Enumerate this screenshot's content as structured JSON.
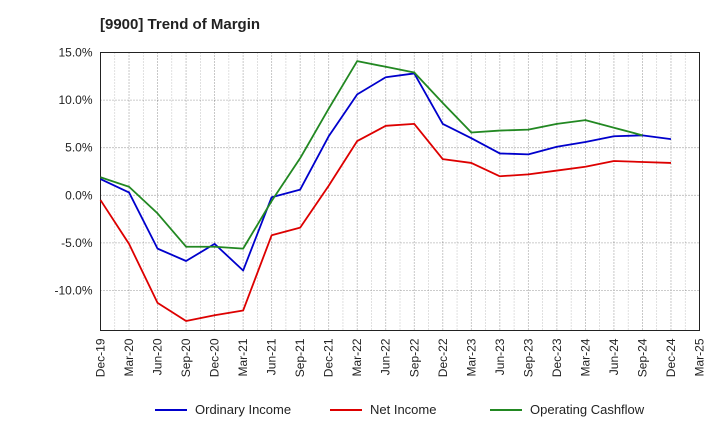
{
  "chart_data": {
    "type": "line",
    "title": "[9900]  Trend of Margin",
    "xlabel": "",
    "ylabel": "",
    "x": [
      "Dec-19",
      "Mar-20",
      "Jun-20",
      "Sep-20",
      "Dec-20",
      "Mar-21",
      "Jun-21",
      "Sep-21",
      "Dec-21",
      "Mar-22",
      "Jun-22",
      "Sep-22",
      "Dec-22",
      "Mar-23",
      "Jun-23",
      "Sep-23",
      "Dec-23",
      "Mar-24",
      "Jun-24",
      "Sep-24",
      "Dec-24",
      "Mar-25"
    ],
    "ylim": [
      -14.2,
      15.0
    ],
    "yticks": [
      15,
      10,
      5,
      0,
      -5,
      -10
    ],
    "ytick_labels": [
      "15.0%",
      "10.0%",
      "5.0%",
      "0.0%",
      "-5.0%",
      "-10.0%"
    ],
    "grid": true,
    "legend_position": "bottom",
    "series": [
      {
        "name": "Ordinary Income",
        "color": "#0000cc",
        "values": [
          1.7,
          0.3,
          -5.6,
          -6.9,
          -5.1,
          -7.9,
          -0.2,
          0.6,
          6.2,
          10.6,
          12.4,
          12.8,
          7.5,
          6.0,
          4.4,
          4.3,
          5.1,
          5.6,
          6.2,
          6.3,
          5.9,
          null
        ]
      },
      {
        "name": "Net Income",
        "color": "#dd0000",
        "values": [
          -0.5,
          -5.1,
          -11.3,
          -13.2,
          -12.6,
          -12.1,
          -4.2,
          -3.4,
          1.0,
          5.7,
          7.3,
          7.5,
          3.8,
          3.4,
          2.0,
          2.2,
          2.6,
          3.0,
          3.6,
          3.5,
          3.4,
          null
        ]
      },
      {
        "name": "Operating Cashflow",
        "color": "#228822",
        "values": [
          1.9,
          0.9,
          -1.9,
          -5.4,
          -5.4,
          -5.6,
          -0.6,
          3.9,
          9.1,
          14.1,
          13.5,
          12.9,
          9.7,
          6.6,
          6.8,
          6.9,
          7.5,
          7.9,
          7.1,
          6.3,
          null,
          null
        ]
      }
    ]
  }
}
